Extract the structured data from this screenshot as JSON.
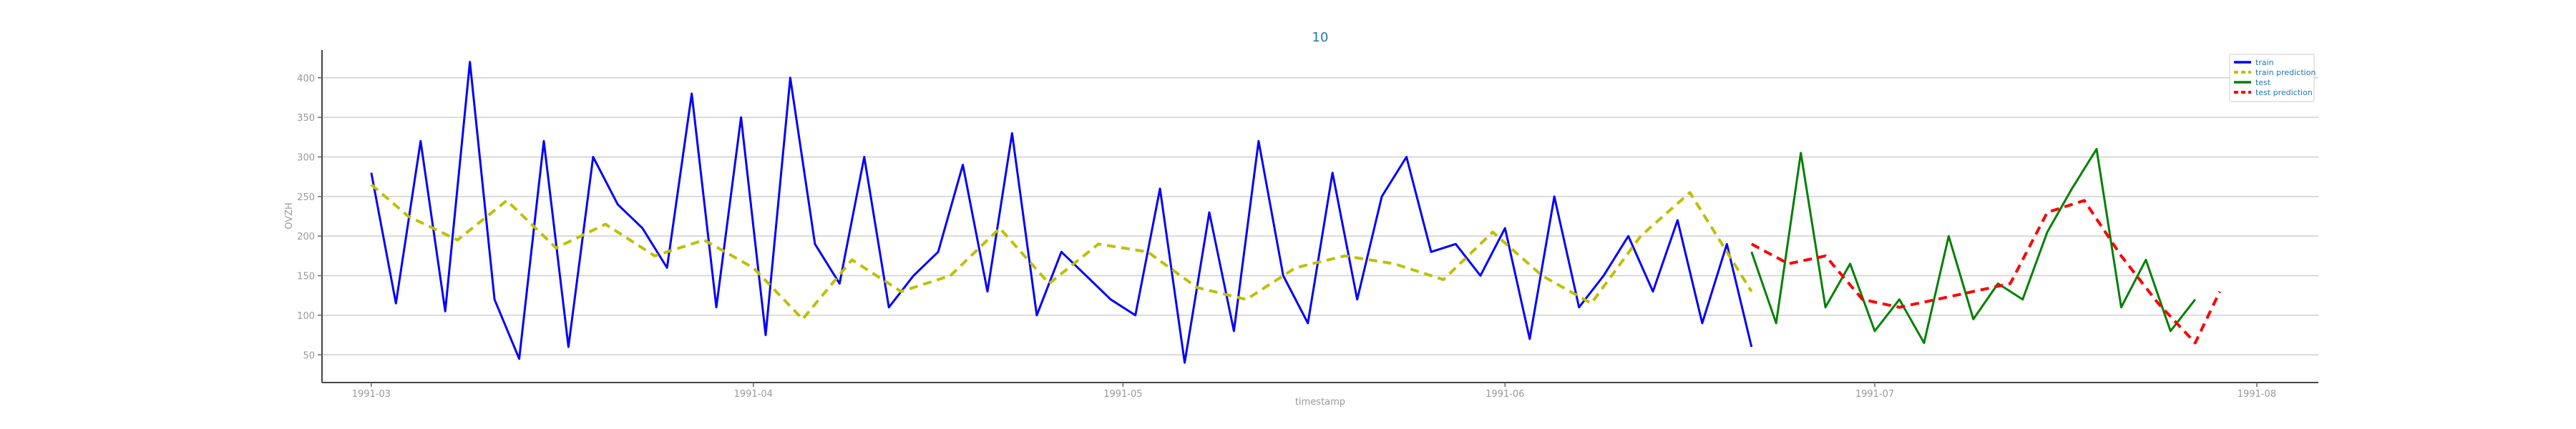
{
  "chart_data": {
    "type": "line",
    "title": "10",
    "xlabel": "timestamp",
    "ylabel": "OVZH",
    "x_range": [
      "1991-02-25",
      "1991-08-06"
    ],
    "ylim": [
      15,
      435
    ],
    "yticks": [
      50,
      100,
      150,
      200,
      250,
      300,
      350,
      400
    ],
    "xticks": [
      {
        "date": "1991-03-01",
        "label": "1991-03"
      },
      {
        "date": "1991-04-01",
        "label": "1991-04"
      },
      {
        "date": "1991-05-01",
        "label": "1991-05"
      },
      {
        "date": "1991-06-01",
        "label": "1991-06"
      },
      {
        "date": "1991-07-01",
        "label": "1991-07"
      },
      {
        "date": "1991-08-01",
        "label": "1991-08"
      }
    ],
    "grid": "horizontal",
    "legend": "top-right",
    "series": [
      {
        "name": "train",
        "color": "#0000ff",
        "style": "solid",
        "x": [
          "1991-03-01",
          "1991-03-03",
          "1991-03-05",
          "1991-03-07",
          "1991-03-09",
          "1991-03-11",
          "1991-03-13",
          "1991-03-15",
          "1991-03-17",
          "1991-03-19",
          "1991-03-21",
          "1991-03-23",
          "1991-03-25",
          "1991-03-27",
          "1991-03-29",
          "1991-03-31",
          "1991-04-02",
          "1991-04-04",
          "1991-04-06",
          "1991-04-08",
          "1991-04-10",
          "1991-04-12",
          "1991-04-14",
          "1991-04-16",
          "1991-04-18",
          "1991-04-20",
          "1991-04-22",
          "1991-04-24",
          "1991-04-26",
          "1991-04-28",
          "1991-04-30",
          "1991-05-02",
          "1991-05-04",
          "1991-05-06",
          "1991-05-08",
          "1991-05-10",
          "1991-05-12",
          "1991-05-14",
          "1991-05-16",
          "1991-05-18",
          "1991-05-20",
          "1991-05-22",
          "1991-05-24",
          "1991-05-26",
          "1991-05-28",
          "1991-05-30",
          "1991-06-01",
          "1991-06-03",
          "1991-06-05",
          "1991-06-07",
          "1991-06-09",
          "1991-06-11",
          "1991-06-13",
          "1991-06-15",
          "1991-06-17",
          "1991-06-19",
          "1991-06-21"
        ],
        "values": [
          280,
          115,
          320,
          105,
          420,
          120,
          45,
          320,
          60,
          300,
          240,
          210,
          160,
          380,
          110,
          350,
          75,
          400,
          190,
          140,
          300,
          110,
          150,
          180,
          290,
          130,
          330,
          100,
          180,
          150,
          120,
          100,
          260,
          40,
          230,
          80,
          320,
          150,
          90,
          280,
          120,
          250,
          300,
          180,
          190,
          150,
          210,
          70,
          250,
          110,
          150,
          200,
          130,
          220,
          90,
          190,
          60
        ]
      },
      {
        "name": "train prediction",
        "color": "#bfbf00",
        "style": "dashed",
        "x": [
          "1991-03-01",
          "1991-03-04",
          "1991-03-08",
          "1991-03-12",
          "1991-03-16",
          "1991-03-20",
          "1991-03-24",
          "1991-03-28",
          "1991-04-01",
          "1991-04-05",
          "1991-04-09",
          "1991-04-13",
          "1991-04-17",
          "1991-04-21",
          "1991-04-25",
          "1991-04-29",
          "1991-05-03",
          "1991-05-07",
          "1991-05-11",
          "1991-05-15",
          "1991-05-19",
          "1991-05-23",
          "1991-05-27",
          "1991-05-31",
          "1991-06-04",
          "1991-06-08",
          "1991-06-12",
          "1991-06-16",
          "1991-06-21"
        ],
        "values": [
          265,
          225,
          195,
          245,
          185,
          215,
          175,
          195,
          160,
          95,
          170,
          130,
          150,
          210,
          140,
          190,
          180,
          135,
          120,
          160,
          175,
          165,
          145,
          205,
          150,
          115,
          200,
          255,
          130
        ]
      },
      {
        "name": "test",
        "color": "#008000",
        "style": "solid",
        "x": [
          "1991-06-21",
          "1991-06-23",
          "1991-06-25",
          "1991-06-27",
          "1991-06-29",
          "1991-07-01",
          "1991-07-03",
          "1991-07-05",
          "1991-07-07",
          "1991-07-09",
          "1991-07-11",
          "1991-07-13",
          "1991-07-15",
          "1991-07-17",
          "1991-07-19",
          "1991-07-21",
          "1991-07-23",
          "1991-07-25",
          "1991-07-27"
        ],
        "values": [
          180,
          90,
          305,
          110,
          165,
          80,
          120,
          65,
          200,
          95,
          140,
          120,
          205,
          260,
          310,
          110,
          170,
          80,
          120
        ]
      },
      {
        "name": "test prediction",
        "color": "#ff0000",
        "style": "dashed",
        "x": [
          "1991-06-21",
          "1991-06-24",
          "1991-06-27",
          "1991-06-30",
          "1991-07-03",
          "1991-07-06",
          "1991-07-09",
          "1991-07-12",
          "1991-07-15",
          "1991-07-18",
          "1991-07-21",
          "1991-07-24",
          "1991-07-27",
          "1991-07-29"
        ],
        "values": [
          190,
          165,
          175,
          120,
          110,
          120,
          130,
          140,
          230,
          245,
          175,
          115,
          65,
          130
        ]
      }
    ]
  }
}
